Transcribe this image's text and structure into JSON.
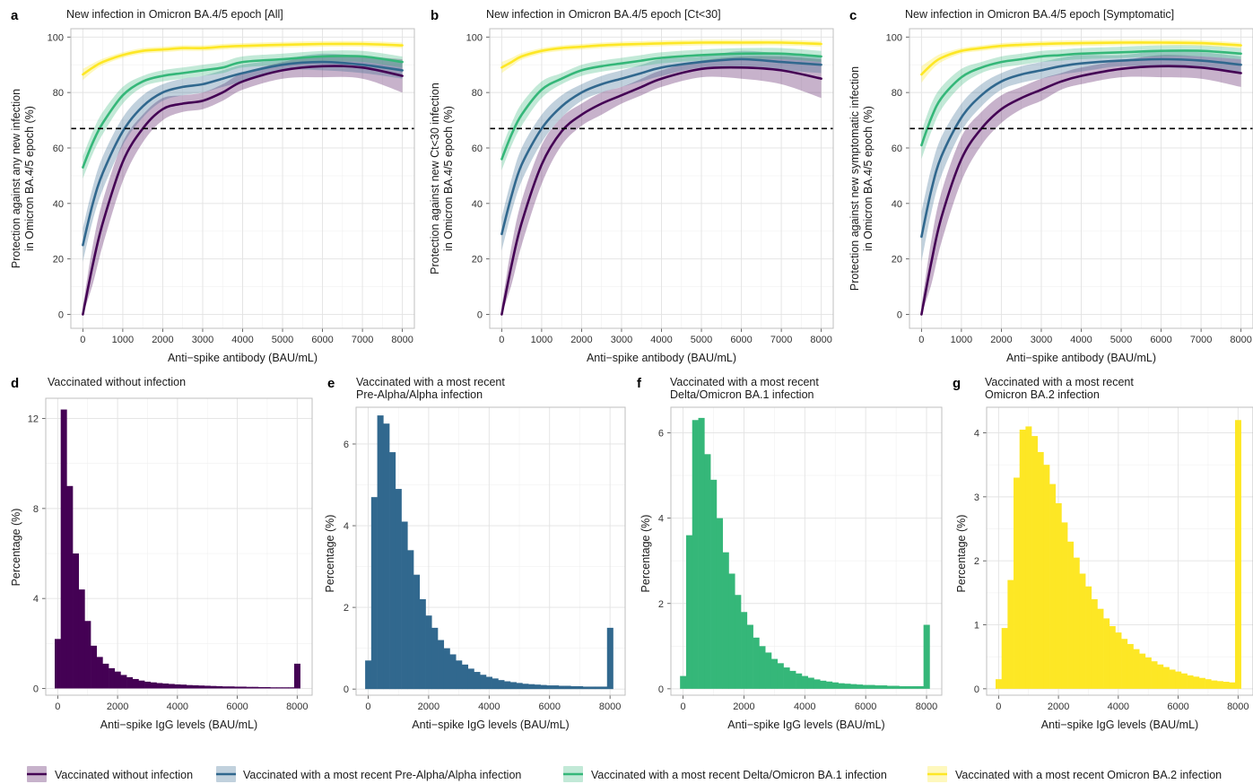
{
  "colors": {
    "none": "#440154",
    "pre_alpha": "#31688e",
    "delta_ba1": "#35b779",
    "ba2": "#fde725",
    "threshold": "#000000"
  },
  "legend": {
    "items": [
      {
        "key": "none",
        "label": "Vaccinated without infection"
      },
      {
        "key": "pre_alpha",
        "label": "Vaccinated with a most recent Pre-Alpha/Alpha infection"
      },
      {
        "key": "delta_ba1",
        "label": "Vaccinated with a most recent Delta/Omicron BA.1 infection"
      },
      {
        "key": "ba2",
        "label": "Vaccinated with a most recent Omicron BA.2 infection"
      }
    ]
  },
  "chart_data": [
    {
      "panel": "a",
      "type": "line",
      "title": "New infection in Omicron BA.4/5 epoch [All]",
      "xlabel": "Anti−spike antibody (BAU/mL)",
      "ylabel_lines": [
        "Protection against any new infection",
        "in Omicron BA.4/5 epoch (%)"
      ],
      "xlim": [
        -300,
        8300
      ],
      "ylim": [
        -5,
        103
      ],
      "xticks": [
        0,
        1000,
        2000,
        3000,
        4000,
        5000,
        6000,
        7000,
        8000
      ],
      "yticks": [
        0,
        20,
        40,
        60,
        80,
        100
      ],
      "threshold": 67,
      "x": [
        0,
        250,
        500,
        1000,
        1500,
        2000,
        2500,
        3000,
        3500,
        4000,
        5000,
        6000,
        7000,
        8000
      ],
      "series": [
        {
          "key": "none",
          "y": [
            0,
            18,
            33,
            55,
            67,
            74,
            76,
            77,
            80,
            84,
            88,
            89.5,
            89,
            86
          ],
          "band": [
            3,
            7,
            8,
            7,
            5,
            4,
            3,
            3,
            3,
            3,
            3,
            4,
            4,
            6
          ]
        },
        {
          "key": "pre_alpha",
          "y": [
            25,
            40,
            51,
            66,
            75,
            80,
            82,
            83,
            85,
            87,
            90,
            91,
            90,
            88
          ],
          "band": [
            6,
            6,
            6,
            5,
            4,
            3,
            3,
            3,
            3,
            3,
            2,
            3,
            3,
            3
          ]
        },
        {
          "key": "delta_ba1",
          "y": [
            53,
            62,
            69,
            79,
            84,
            86,
            87,
            88,
            89,
            91,
            92,
            93,
            93,
            91
          ],
          "band": [
            4,
            4,
            4,
            3,
            2,
            2,
            2,
            2,
            2,
            2,
            2,
            2,
            2,
            2
          ]
        },
        {
          "key": "ba2",
          "y": [
            86.5,
            89,
            91,
            93.5,
            95,
            95.5,
            96,
            96,
            96.5,
            96.8,
            97.2,
            97.5,
            97.5,
            97
          ],
          "band": [
            2,
            1.5,
            1.2,
            1,
            1,
            1,
            1,
            1,
            1,
            1,
            1,
            1,
            1,
            1
          ]
        }
      ]
    },
    {
      "panel": "b",
      "type": "line",
      "title": "New infection in Omicron BA.4/5 epoch [Ct<30]",
      "xlabel": "Anti−spike antibody (BAU/mL)",
      "ylabel_lines": [
        "Protection against new Ct<30 infection",
        "in Omicron BA.4/5 epoch (%)"
      ],
      "xlim": [
        -300,
        8300
      ],
      "ylim": [
        -5,
        103
      ],
      "xticks": [
        0,
        1000,
        2000,
        3000,
        4000,
        5000,
        6000,
        7000,
        8000
      ],
      "yticks": [
        0,
        20,
        40,
        60,
        80,
        100
      ],
      "threshold": 67,
      "x": [
        0,
        250,
        500,
        1000,
        1500,
        2000,
        2500,
        3000,
        3500,
        4000,
        5000,
        6000,
        7000,
        8000
      ],
      "series": [
        {
          "key": "none",
          "y": [
            0,
            18,
            33,
            54,
            66,
            72,
            76,
            79,
            82,
            85,
            88.5,
            89,
            88,
            85
          ],
          "band": [
            3,
            7,
            8,
            7,
            5,
            4,
            4,
            3,
            3,
            3,
            3,
            4,
            5,
            7
          ]
        },
        {
          "key": "pre_alpha",
          "y": [
            29,
            43,
            54,
            67,
            75,
            80,
            83,
            85,
            87,
            89,
            91,
            92,
            91,
            90
          ],
          "band": [
            6,
            6,
            6,
            5,
            4,
            3,
            3,
            3,
            3,
            3,
            2,
            3,
            3,
            3
          ]
        },
        {
          "key": "delta_ba1",
          "y": [
            56,
            65,
            72,
            81,
            85,
            88,
            89.5,
            90.5,
            91.5,
            92.5,
            93.5,
            94,
            94,
            93
          ],
          "band": [
            4,
            4,
            4,
            3,
            2,
            2,
            2,
            2,
            2,
            2,
            2,
            2,
            2,
            2
          ]
        },
        {
          "key": "ba2",
          "y": [
            89,
            91,
            93,
            95,
            96,
            96.5,
            97,
            97.3,
            97.5,
            97.7,
            98,
            98,
            98,
            97.5
          ],
          "band": [
            2,
            1.5,
            1.2,
            1,
            1,
            1,
            1,
            1,
            1,
            1,
            1,
            1,
            1,
            1
          ]
        }
      ]
    },
    {
      "panel": "c",
      "type": "line",
      "title": "New infection in Omicron BA.4/5 epoch [Symptomatic]",
      "xlabel": "Anti−spike antibody (BAU/mL)",
      "ylabel_lines": [
        "Protection against new symptomatic infection",
        "in Omicron BA.4/5 epoch (%)"
      ],
      "xlim": [
        -300,
        8300
      ],
      "ylim": [
        -5,
        103
      ],
      "xticks": [
        0,
        1000,
        2000,
        3000,
        4000,
        5000,
        6000,
        7000,
        8000
      ],
      "yticks": [
        0,
        20,
        40,
        60,
        80,
        100
      ],
      "threshold": 67,
      "x": [
        0,
        250,
        500,
        1000,
        1500,
        2000,
        2500,
        3000,
        3500,
        4000,
        5000,
        6000,
        7000,
        8000
      ],
      "series": [
        {
          "key": "none",
          "y": [
            0,
            19,
            35,
            56,
            67,
            74,
            78,
            81,
            84,
            86,
            88.5,
            89.5,
            89,
            87
          ],
          "band": [
            3,
            8,
            9,
            8,
            6,
            5,
            4,
            4,
            3,
            3,
            3,
            4,
            4,
            5
          ]
        },
        {
          "key": "pre_alpha",
          "y": [
            28,
            45,
            57,
            71,
            79,
            84,
            86.5,
            88,
            89.5,
            90.5,
            91.5,
            92,
            91.5,
            90
          ],
          "band": [
            9,
            8,
            7,
            5,
            4,
            3,
            3,
            3,
            3,
            3,
            2,
            3,
            3,
            3
          ]
        },
        {
          "key": "delta_ba1",
          "y": [
            61,
            71,
            78,
            85.5,
            89,
            91,
            92,
            93,
            93.5,
            94,
            94.5,
            95,
            95,
            94
          ],
          "band": [
            5,
            5,
            4,
            3,
            2,
            2,
            2,
            2,
            2,
            2,
            2,
            2,
            2,
            2
          ]
        },
        {
          "key": "ba2",
          "y": [
            86.5,
            90,
            92.5,
            95,
            96,
            96.8,
            97.2,
            97.5,
            97.7,
            97.8,
            98,
            98,
            97.8,
            97
          ],
          "band": [
            3,
            2,
            1.5,
            1,
            1,
            1,
            1,
            1,
            1,
            1,
            1,
            1,
            1,
            1
          ]
        }
      ]
    },
    {
      "panel": "d",
      "type": "bar",
      "title": "Vaccinated without infection",
      "title_lines": [
        "Vaccinated without infection"
      ],
      "xlabel": "Anti−spike IgG levels (BAU/mL)",
      "ylabel": "Percentage (%)",
      "series_key": "none",
      "xlim": [
        -400,
        8500
      ],
      "ylim": [
        -0.3,
        12.9
      ],
      "xticks": [
        0,
        2000,
        4000,
        6000,
        8000
      ],
      "yticks": [
        0,
        4,
        8,
        12
      ],
      "bin_width": 200,
      "bin_start": -100,
      "values": [
        2.2,
        12.4,
        9.0,
        6.0,
        4.4,
        3.0,
        1.9,
        1.4,
        1.1,
        0.9,
        0.75,
        0.6,
        0.5,
        0.42,
        0.35,
        0.3,
        0.27,
        0.24,
        0.22,
        0.2,
        0.18,
        0.17,
        0.15,
        0.14,
        0.13,
        0.12,
        0.11,
        0.1,
        0.09,
        0.09,
        0.08,
        0.08,
        0.07,
        0.07,
        0.06,
        0.06,
        0.05,
        0.05,
        0.05,
        0.05,
        1.1
      ]
    },
    {
      "panel": "e",
      "type": "bar",
      "title": "Vaccinated with a most recent Pre-Alpha/Alpha infection",
      "title_lines": [
        "Vaccinated with a most recent",
        "Pre-Alpha/Alpha infection"
      ],
      "xlabel": "Anti−spike IgG levels (BAU/mL)",
      "ylabel": "Percentage (%)",
      "series_key": "pre_alpha",
      "xlim": [
        -400,
        8500
      ],
      "ylim": [
        -0.15,
        6.9
      ],
      "xticks": [
        0,
        2000,
        4000,
        6000,
        8000
      ],
      "yticks": [
        0,
        2,
        4,
        6
      ],
      "bin_width": 200,
      "bin_start": -100,
      "values": [
        0.7,
        4.7,
        6.7,
        6.5,
        5.8,
        4.9,
        4.1,
        3.4,
        2.8,
        2.2,
        1.8,
        1.5,
        1.2,
        1.0,
        0.85,
        0.7,
        0.6,
        0.5,
        0.42,
        0.35,
        0.3,
        0.26,
        0.22,
        0.19,
        0.17,
        0.15,
        0.13,
        0.12,
        0.11,
        0.1,
        0.09,
        0.09,
        0.08,
        0.08,
        0.07,
        0.07,
        0.06,
        0.06,
        0.06,
        0.06,
        1.5
      ]
    },
    {
      "panel": "f",
      "type": "bar",
      "title": "Vaccinated with a most recent Delta/Omicron BA.1 infection",
      "title_lines": [
        "Vaccinated with a most recent",
        "Delta/Omicron BA.1 infection"
      ],
      "xlabel": "Anti−spike IgG levels (BAU/mL)",
      "ylabel": "Percentage (%)",
      "series_key": "delta_ba1",
      "xlim": [
        -400,
        8500
      ],
      "ylim": [
        -0.15,
        6.6
      ],
      "xticks": [
        0,
        2000,
        4000,
        6000,
        8000
      ],
      "yticks": [
        0,
        2,
        4,
        6
      ],
      "bin_width": 200,
      "bin_start": -100,
      "values": [
        0.3,
        3.6,
        6.3,
        6.35,
        5.5,
        4.9,
        4.0,
        3.2,
        2.7,
        2.2,
        1.8,
        1.5,
        1.2,
        1.0,
        0.85,
        0.7,
        0.6,
        0.5,
        0.42,
        0.36,
        0.3,
        0.26,
        0.22,
        0.19,
        0.17,
        0.15,
        0.13,
        0.12,
        0.11,
        0.1,
        0.09,
        0.09,
        0.08,
        0.08,
        0.07,
        0.07,
        0.06,
        0.06,
        0.06,
        0.06,
        1.5
      ]
    },
    {
      "panel": "g",
      "type": "bar",
      "title": "Vaccinated with a most recent Omicron BA.2 infection",
      "title_lines": [
        "Vaccinated with a most recent",
        "Omicron BA.2 infection"
      ],
      "xlabel": "Anti−spike IgG levels (BAU/mL)",
      "ylabel": "Percentage (%)",
      "series_key": "ba2",
      "xlim": [
        -400,
        8500
      ],
      "ylim": [
        -0.1,
        4.4
      ],
      "xticks": [
        0,
        2000,
        4000,
        6000,
        8000
      ],
      "yticks": [
        0,
        1,
        2,
        3,
        4
      ],
      "bin_width": 200,
      "bin_start": -100,
      "values": [
        0.15,
        0.95,
        1.7,
        3.3,
        4.05,
        4.1,
        3.95,
        3.7,
        3.5,
        3.2,
        2.9,
        2.6,
        2.3,
        2.05,
        1.8,
        1.6,
        1.4,
        1.25,
        1.1,
        0.98,
        0.88,
        0.78,
        0.7,
        0.62,
        0.55,
        0.49,
        0.43,
        0.38,
        0.34,
        0.3,
        0.27,
        0.24,
        0.21,
        0.19,
        0.17,
        0.15,
        0.13,
        0.12,
        0.11,
        0.1,
        4.2
      ]
    }
  ]
}
